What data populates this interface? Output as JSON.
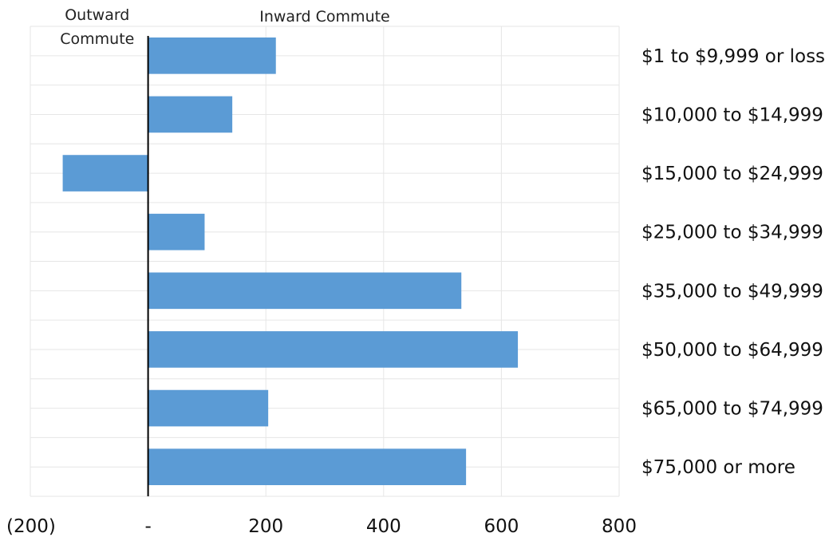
{
  "chart_data": {
    "type": "bar",
    "orientation": "horizontal",
    "title": "",
    "xlabel": "",
    "ylabel": "",
    "headers": {
      "negative": [
        "Outward",
        "Commute"
      ],
      "positive": "Inward Commute"
    },
    "categories": [
      "$1 to $9,999 or loss",
      "$10,000 to $14,999",
      "$15,000 to $24,999",
      "$25,000 to $34,999",
      "$35,000 to $49,999",
      "$50,000 to $64,999",
      "$65,000 to $74,999",
      "$75,000 or more"
    ],
    "values": [
      217,
      143,
      -145,
      96,
      532,
      628,
      204,
      540
    ],
    "xlim": [
      -200,
      800
    ],
    "x_ticks": [
      -200,
      0,
      200,
      400,
      600,
      800
    ],
    "x_tick_labels": [
      "(200)",
      "-",
      "200",
      "400",
      "600",
      "800"
    ],
    "category_label_position": "right",
    "grid": true,
    "legend": "none",
    "colors": {
      "bar": "#5b9bd5",
      "zero_line": "#000000",
      "grid": "#e6e6e6"
    }
  }
}
